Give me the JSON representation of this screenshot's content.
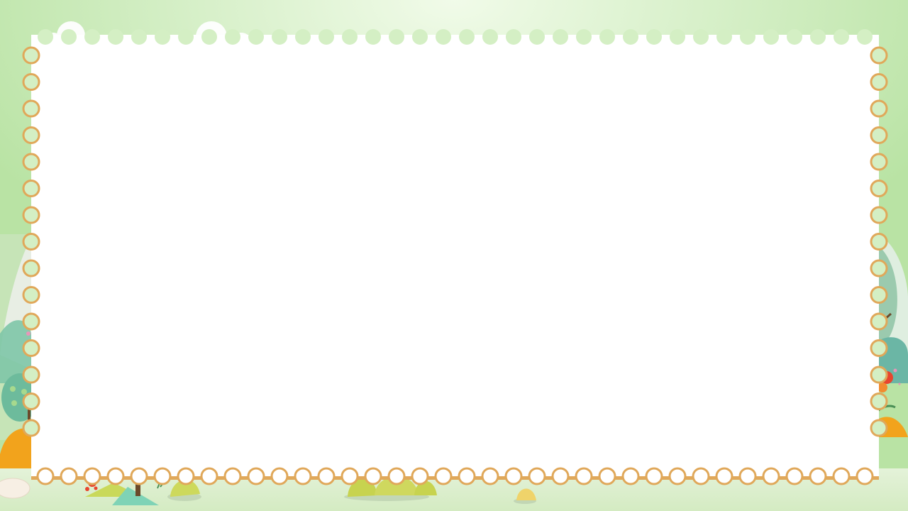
{
  "colors": {
    "background_green": "#b8e3a3",
    "paper": "#ffffff",
    "scallop_border": "#e0a85a",
    "guide_line": "#6fcbe3",
    "tree_teal": "#6dbb9c",
    "flower_red": "#e8452e",
    "flower_orange": "#f2a31c",
    "grass": "#c9d95a"
  },
  "decorations": {
    "left": [
      "cloud",
      "tree",
      "flower",
      "hill"
    ],
    "right": [
      "leaf",
      "flower",
      "hill"
    ],
    "bottom": [
      "bushes",
      "stones",
      "grass"
    ]
  }
}
